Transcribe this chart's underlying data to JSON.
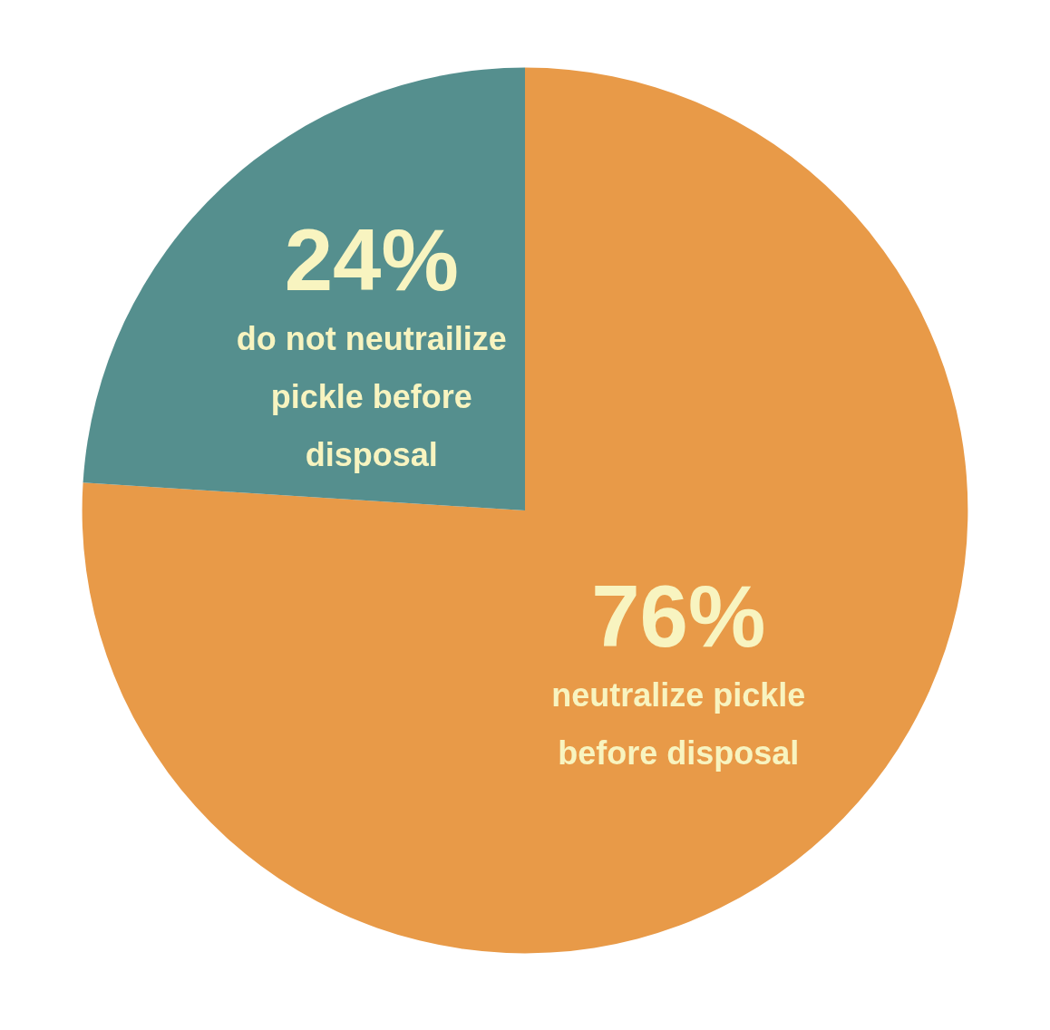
{
  "chart_data": {
    "type": "pie",
    "categories": [
      "neutralize pickle before disposal",
      "do not neutrailize pickle before disposal"
    ],
    "values": [
      76,
      24
    ],
    "colors": [
      "#e89a48",
      "#558f8e"
    ],
    "value_labels": [
      "76%",
      "24%"
    ],
    "legend": false
  }
}
